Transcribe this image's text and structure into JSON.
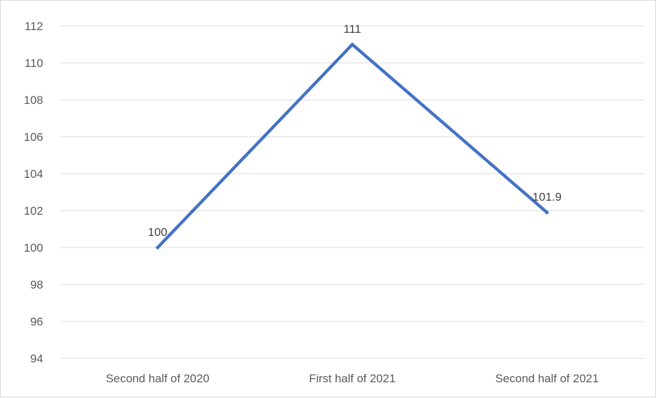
{
  "chart_data": {
    "type": "line",
    "title": "",
    "xlabel": "",
    "ylabel": "",
    "categories": [
      "Second half of 2020",
      "First half of 2021",
      "Second half of 2021"
    ],
    "series": [
      {
        "values": [
          100,
          111,
          101.9
        ],
        "color": "#4472C4",
        "data_labels": [
          "100",
          "111",
          "101.9"
        ]
      }
    ],
    "ylim": [
      94,
      112
    ],
    "ytick_step": 2,
    "yticks": [
      "94",
      "96",
      "98",
      "100",
      "102",
      "104",
      "106",
      "108",
      "110",
      "112"
    ],
    "grid": true,
    "legend": "none",
    "gridline_color": "#d9d9d9"
  }
}
